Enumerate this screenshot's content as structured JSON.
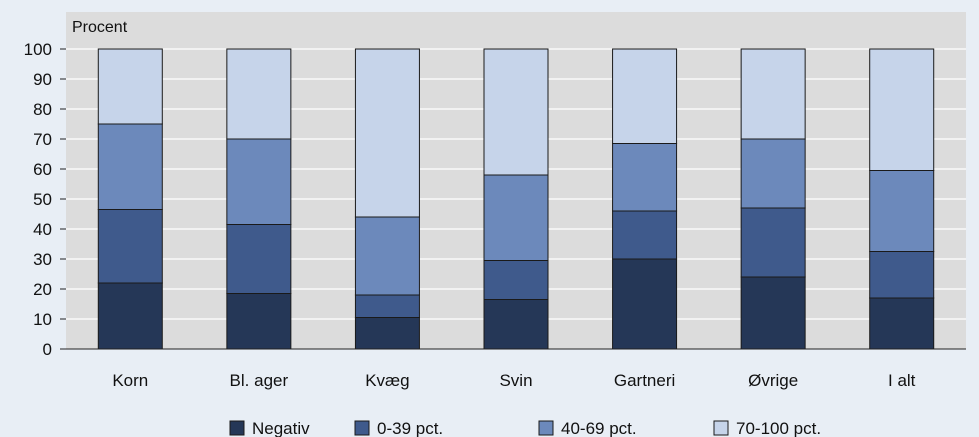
{
  "chart_data": {
    "type": "bar",
    "stacked": true,
    "ylabel": "Procent",
    "ylim": [
      0,
      100
    ],
    "yticks": [
      0,
      10,
      20,
      30,
      40,
      50,
      60,
      70,
      80,
      90,
      100
    ],
    "categories": [
      "Korn",
      "Bl. ager",
      "Kvæg",
      "Svin",
      "Gartneri",
      "Øvrige",
      "I alt"
    ],
    "series": [
      {
        "name": "Negativ",
        "color": "#253757",
        "values": [
          22,
          18.5,
          10.5,
          16.5,
          30,
          24,
          17
        ]
      },
      {
        "name": "0-39 pct.",
        "color": "#3f5a8c",
        "values": [
          24.5,
          23,
          7.5,
          13,
          16,
          23,
          15.5
        ]
      },
      {
        "name": "40-69 pct.",
        "color": "#6c89bb",
        "values": [
          28.5,
          28.5,
          26,
          28.5,
          22.5,
          23,
          27
        ]
      },
      {
        "name": "70-100 pct.",
        "color": "#c6d4ea",
        "values": [
          25,
          30,
          56,
          42,
          31.5,
          30,
          40.5
        ]
      }
    ],
    "grid": true,
    "plot_background": "#dcdcdc",
    "legend_position": "bottom"
  }
}
